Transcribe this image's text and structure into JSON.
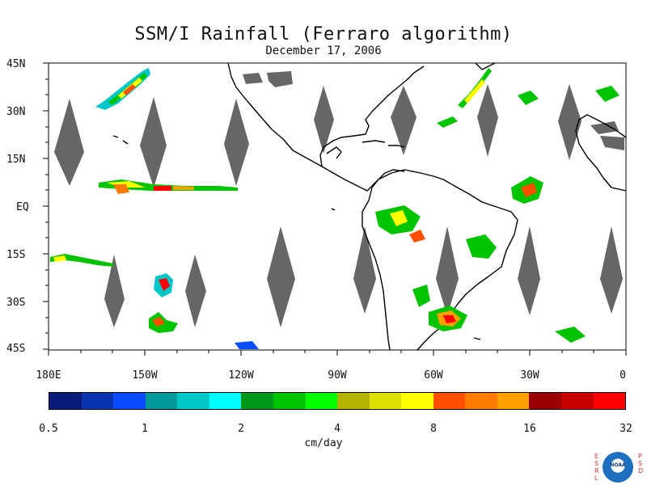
{
  "title": "SSM/I Rainfall (Ferraro algorithm)",
  "subtitle": "December 17, 2006",
  "lat_labels": [
    "45N",
    "30N",
    "15N",
    "EQ",
    "15S",
    "30S",
    "45S"
  ],
  "lon_labels": [
    "180E",
    "150W",
    "120W",
    "90W",
    "60W",
    "30W",
    "0"
  ],
  "colorbar": {
    "colors": [
      "#0a1a7c",
      "#0834b0",
      "#0a4cff",
      "#009a9a",
      "#00c8c8",
      "#00ffff",
      "#00991a",
      "#00c400",
      "#00ff00",
      "#b4b400",
      "#e0e000",
      "#ffff00",
      "#ff5000",
      "#ff7a00",
      "#ffa000",
      "#9a0000",
      "#c80000",
      "#ff0000"
    ],
    "tick_labels": [
      "0.5",
      "1",
      "2",
      "4",
      "8",
      "16",
      "32"
    ],
    "units": "cm/day"
  },
  "logo": {
    "left_letters": "ESRL",
    "right_letters": "PSD",
    "text": "NOAA"
  }
}
